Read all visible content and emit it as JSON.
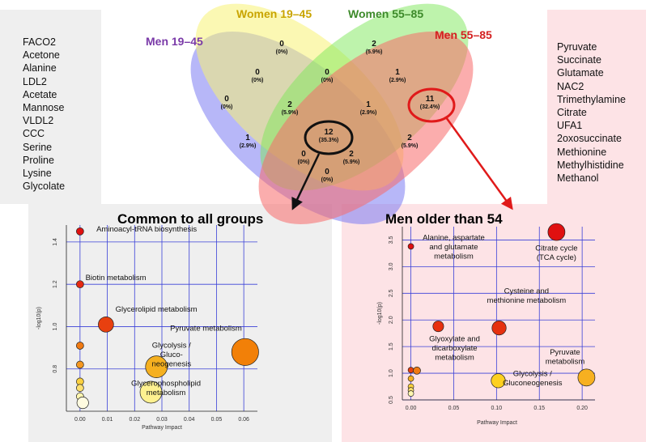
{
  "venn": {
    "sets": [
      {
        "name": "Men 19–45",
        "color": "#7a3aa8"
      },
      {
        "name": "Women 19–45",
        "color": "#c9a400"
      },
      {
        "name": "Women 55–85",
        "color": "#3d8a2a"
      },
      {
        "name": "Men 55–85",
        "color": "#d42020"
      }
    ],
    "regions": [
      {
        "count": "0",
        "pct": "(0%)"
      },
      {
        "count": "2",
        "pct": "(5.9%)"
      },
      {
        "count": "0",
        "pct": "(0%)"
      },
      {
        "count": "0",
        "pct": "(0%)"
      },
      {
        "count": "1",
        "pct": "(2.9%)"
      },
      {
        "count": "0",
        "pct": "(0%)"
      },
      {
        "count": "11",
        "pct": "(32.4%)"
      },
      {
        "count": "2",
        "pct": "(5.9%)"
      },
      {
        "count": "1",
        "pct": "(2.9%)"
      },
      {
        "count": "1",
        "pct": "(2.9%)"
      },
      {
        "count": "12",
        "pct": "(35.3%)"
      },
      {
        "count": "2",
        "pct": "(5.9%)"
      },
      {
        "count": "2",
        "pct": "(5.9%)"
      },
      {
        "count": "0",
        "pct": "(0%)"
      },
      {
        "count": "0",
        "pct": "(0%)"
      }
    ]
  },
  "left_list": [
    "FACO2",
    "Acetone",
    "Alanine",
    "LDL2",
    "Acetate",
    "Mannose",
    "VLDL2",
    "CCC",
    "Serine",
    "Proline",
    "Lysine",
    "Glycolate"
  ],
  "right_list": [
    "Pyruvate",
    "Succinate",
    "Glutamate",
    "NAC2",
    "Trimethylamine",
    "Citrate",
    "UFA1",
    "2oxosuccinate",
    "Methionine",
    "Methylhistidine",
    "Methanol"
  ],
  "chart_data": [
    {
      "type": "scatter",
      "title": "Common to all groups",
      "xlabel": "Pathway Impact",
      "ylabel": "-log10(p)",
      "xlim": [
        -0.005,
        0.065
      ],
      "ylim": [
        0.6,
        1.48
      ],
      "xticks": [
        "0.00",
        "0.01",
        "0.02",
        "0.03",
        "0.04",
        "0.05",
        "0.06"
      ],
      "xtick_values": [
        0,
        0.01,
        0.02,
        0.03,
        0.04,
        0.05,
        0.06
      ],
      "yticks": [
        "0.8",
        "1.0",
        "1.2",
        "1.4"
      ],
      "ytick_values": [
        0.8,
        1.0,
        1.2,
        1.4
      ],
      "grid": true,
      "points": [
        {
          "x": 0.0,
          "y": 1.45,
          "size": 1,
          "color": "#e01010"
        },
        {
          "x": 0.0,
          "y": 1.2,
          "size": 1,
          "color": "#e62a12"
        },
        {
          "x": 0.0,
          "y": 0.91,
          "size": 1,
          "color": "#f07a12"
        },
        {
          "x": 0.0,
          "y": 0.82,
          "size": 1,
          "color": "#f59820"
        },
        {
          "x": 0.0,
          "y": 0.74,
          "size": 1,
          "color": "#fad040"
        },
        {
          "x": 0.0,
          "y": 0.71,
          "size": 1,
          "color": "#fde070"
        },
        {
          "x": 0.0,
          "y": 0.67,
          "size": 1,
          "color": "#fff6b0"
        },
        {
          "x": 0.001,
          "y": 0.64,
          "size": 1.6,
          "color": "#fffbe0"
        },
        {
          "x": 0.0095,
          "y": 1.01,
          "size": 2.1,
          "color": "#e8400f"
        },
        {
          "x": 0.028,
          "y": 0.81,
          "size": 3.0,
          "color": "#f5b020"
        },
        {
          "x": 0.026,
          "y": 0.69,
          "size": 3.0,
          "color": "#fef190"
        },
        {
          "x": 0.0605,
          "y": 0.88,
          "size": 3.7,
          "color": "#f28008"
        }
      ],
      "labels": [
        {
          "text": "Aminoacyl-tRNA biosynthesis",
          "x": 0.006,
          "y": 1.45
        },
        {
          "text": "Biotin metabolism",
          "x": 0.002,
          "y": 1.22
        },
        {
          "text": "Glycerolipid metabolism",
          "x": 0.013,
          "y": 1.07
        },
        {
          "text": "Pyruvate metabolism",
          "x": 0.033,
          "y": 0.98
        },
        {
          "text": [
            "Glycolysis /",
            "Gluco-",
            "neogenesis"
          ],
          "x": 0.0335,
          "y": 0.9
        },
        {
          "text": [
            "Glycerophospholipid",
            "metabolism"
          ],
          "x": 0.0315,
          "y": 0.72
        }
      ]
    },
    {
      "type": "scatter",
      "title": "Men older than 54",
      "xlabel": "Pathway Impact",
      "ylabel": "-log10(p)",
      "xlim": [
        -0.01,
        0.215
      ],
      "ylim": [
        0.5,
        3.75
      ],
      "xticks": [
        "0.00",
        "0.05",
        "0.10",
        "0.15",
        "0.20"
      ],
      "xtick_values": [
        0,
        0.05,
        0.1,
        0.15,
        0.2
      ],
      "yticks": [
        "0.5",
        "1.0",
        "1.5",
        "2.0",
        "2.5",
        "3.0",
        "3.5"
      ],
      "ytick_values": [
        0.5,
        1.0,
        1.5,
        2.0,
        2.5,
        3.0,
        3.5
      ],
      "grid": true,
      "points": [
        {
          "x": 0.0,
          "y": 3.38,
          "size": 1,
          "color": "#e01010"
        },
        {
          "x": 0.0,
          "y": 1.06,
          "size": 1,
          "color": "#e8400f"
        },
        {
          "x": 0.0,
          "y": 0.9,
          "size": 1,
          "color": "#f7b020"
        },
        {
          "x": 0.0,
          "y": 0.75,
          "size": 1,
          "color": "#fad040"
        },
        {
          "x": 0.0,
          "y": 0.68,
          "size": 1,
          "color": "#fde070"
        },
        {
          "x": 0.0,
          "y": 0.62,
          "size": 1,
          "color": "#fff6b0"
        },
        {
          "x": 0.007,
          "y": 1.05,
          "size": 1.3,
          "color": "#f07a12"
        },
        {
          "x": 0.032,
          "y": 1.88,
          "size": 1.9,
          "color": "#e8300f"
        },
        {
          "x": 0.103,
          "y": 1.85,
          "size": 2.5,
          "color": "#e6300f"
        },
        {
          "x": 0.102,
          "y": 0.86,
          "size": 2.5,
          "color": "#fdd020"
        },
        {
          "x": 0.17,
          "y": 3.65,
          "size": 3.0,
          "color": "#e01010"
        },
        {
          "x": 0.205,
          "y": 0.92,
          "size": 3.0,
          "color": "#f7b020"
        }
      ],
      "labels": [
        {
          "text": [
            "Alanine, aspartate",
            "and glutamate",
            "metabolism"
          ],
          "x": 0.05,
          "y": 3.5
        },
        {
          "text": [
            "Citrate cycle",
            "(TCA cycle)"
          ],
          "x": 0.17,
          "y": 3.3
        },
        {
          "text": [
            "Cysteine and",
            "methionine metabolism"
          ],
          "x": 0.135,
          "y": 2.5
        },
        {
          "text": [
            "Glyoxylate and",
            "dicarboxylate",
            "metabolism"
          ],
          "x": 0.051,
          "y": 1.6
        },
        {
          "text": [
            "Pyruvate",
            "metabolism"
          ],
          "x": 0.18,
          "y": 1.35
        },
        {
          "text": [
            "Glycolysis /",
            "Gluconeogenesis"
          ],
          "x": 0.142,
          "y": 0.95
        }
      ]
    }
  ]
}
